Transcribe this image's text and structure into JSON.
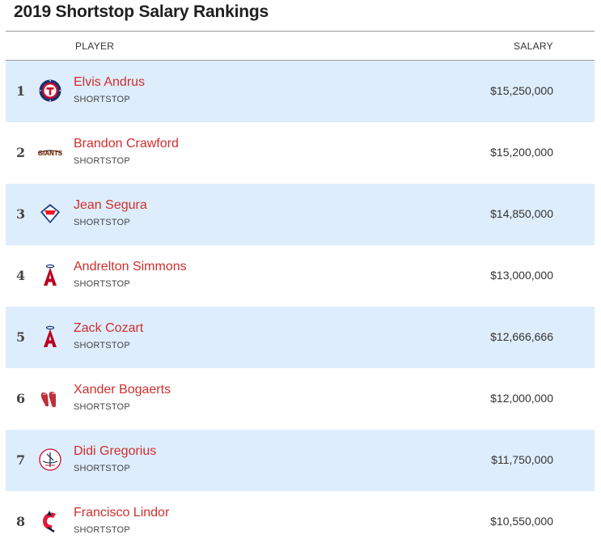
{
  "page": {
    "title": "2019 Shortstop Salary Rankings"
  },
  "table": {
    "headers": {
      "player": "PLAYER",
      "salary": "SALARY"
    },
    "rows": [
      {
        "rank": "1",
        "name": "Elvis Andrus",
        "position": "SHORTSTOP",
        "salary": "$15,250,000",
        "logo": "rangers-logo-icon"
      },
      {
        "rank": "2",
        "name": "Brandon Crawford",
        "position": "SHORTSTOP",
        "salary": "$15,200,000",
        "logo": "giants-logo-icon",
        "logo_text": "GIANTS"
      },
      {
        "rank": "3",
        "name": "Jean Segura",
        "position": "SHORTSTOP",
        "salary": "$14,850,000",
        "logo": "phillies-logo-icon"
      },
      {
        "rank": "4",
        "name": "Andrelton Simmons",
        "position": "SHORTSTOP",
        "salary": "$13,000,000",
        "logo": "angels-logo-icon"
      },
      {
        "rank": "5",
        "name": "Zack Cozart",
        "position": "SHORTSTOP",
        "salary": "$12,666,666",
        "logo": "angels-logo-icon"
      },
      {
        "rank": "6",
        "name": "Xander Bogaerts",
        "position": "SHORTSTOP",
        "salary": "$12,000,000",
        "logo": "red-sox-logo-icon"
      },
      {
        "rank": "7",
        "name": "Didi Gregorius",
        "position": "SHORTSTOP",
        "salary": "$11,750,000",
        "logo": "yankees-logo-icon"
      },
      {
        "rank": "8",
        "name": "Francisco Lindor",
        "position": "SHORTSTOP",
        "salary": "$10,550,000",
        "logo": "indians-logo-icon"
      }
    ]
  },
  "colors": {
    "accent_red": "#cf2e2e",
    "row_highlight": "#deedfb"
  }
}
